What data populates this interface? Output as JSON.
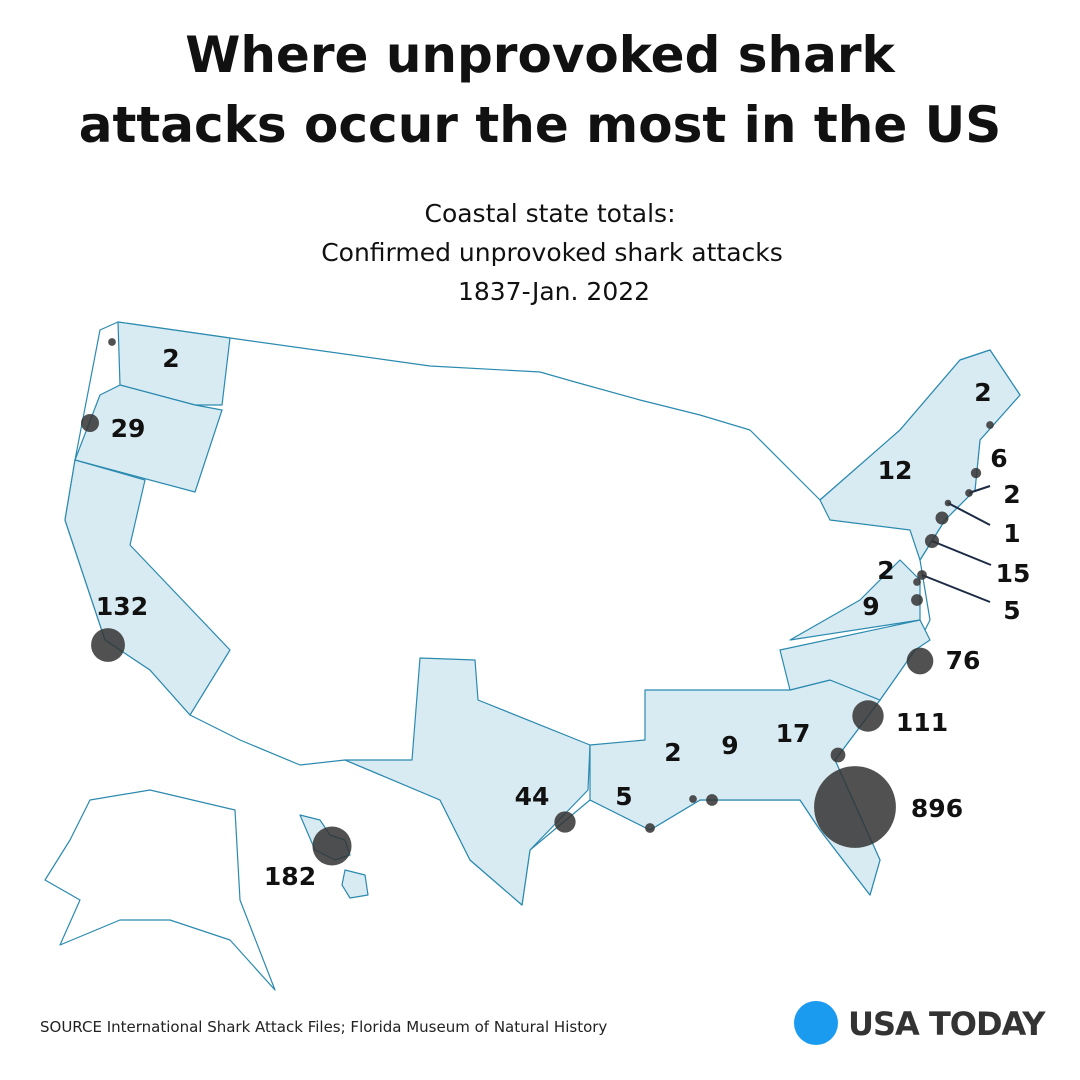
{
  "title": [
    "Where unprovoked shark",
    "attacks occur the most in the US"
  ],
  "subtitle": [
    "Coastal state totals:",
    "Confirmed unprovoked shark attacks",
    "1837-Jan. 2022"
  ],
  "points": [
    2,
    29,
    132,
    182,
    44,
    5,
    2,
    9,
    17,
    896,
    111,
    76,
    9,
    2,
    5,
    15,
    12,
    1,
    2,
    6,
    2
  ],
  "source": "SOURCE International Shark Attack Files; Florida Museum of Natural History",
  "logo": "USA TODAY"
}
